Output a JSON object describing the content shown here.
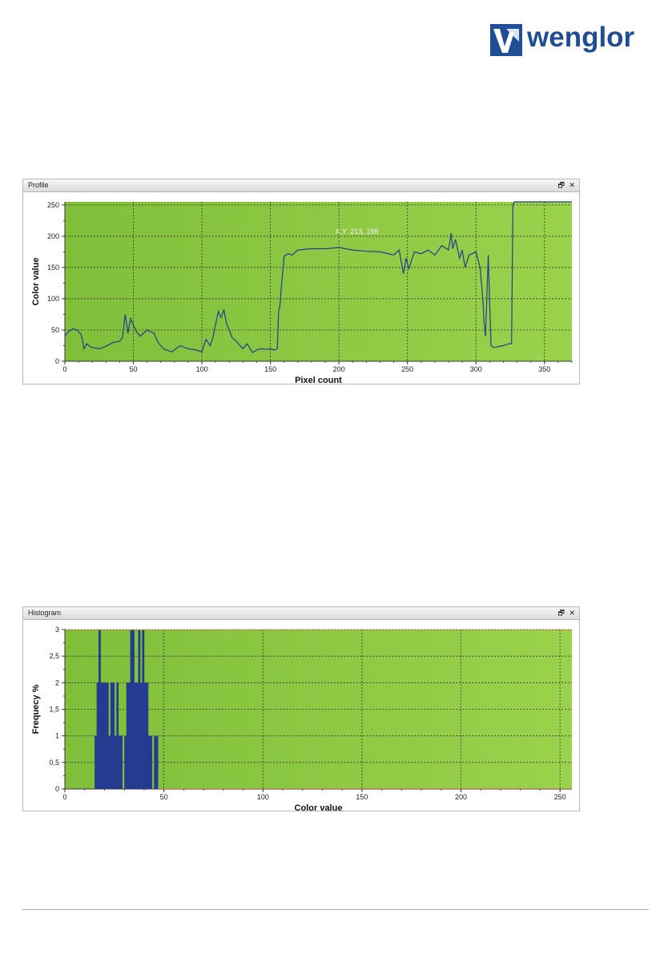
{
  "brand": {
    "name": "wenglor",
    "color": "#1f4e96"
  },
  "colors": {
    "plot_bg": "#8cc63f",
    "series": "#233c8f",
    "grid": "#333333"
  },
  "profile_panel": {
    "title": "Profile",
    "restore_icon": "🗗",
    "close_icon": "✕",
    "cursor_readout": "X,Y: 213, 198"
  },
  "histogram_panel": {
    "title": "Histogram",
    "restore_icon": "🗗",
    "close_icon": "✕"
  },
  "chart_data": [
    {
      "type": "line",
      "xlabel": "Pixel count",
      "ylabel": "Color value",
      "xlim": [
        0,
        370
      ],
      "ylim": [
        0,
        255
      ],
      "xticks": [
        0,
        50,
        100,
        150,
        200,
        250,
        300,
        350
      ],
      "yticks": [
        0,
        50,
        100,
        150,
        200,
        250
      ],
      "grid": true,
      "series": [
        {
          "x": [
            0,
            3,
            6,
            9,
            12,
            14,
            16,
            18,
            20,
            25,
            30,
            35,
            40,
            42,
            44,
            46,
            48,
            50,
            52,
            55,
            60,
            65,
            68,
            72,
            78,
            84,
            90,
            96,
            100,
            103,
            106,
            108,
            112,
            114,
            116,
            118,
            120,
            122,
            125,
            130,
            133,
            137,
            140,
            143,
            147,
            150,
            153,
            155,
            156,
            157,
            158,
            160,
            163,
            166,
            170,
            180,
            190,
            200,
            210,
            220,
            230,
            240,
            244,
            247,
            249,
            251,
            255,
            260,
            265,
            270,
            275,
            280,
            282,
            283,
            285,
            288,
            290,
            292,
            295,
            300,
            303,
            305,
            306,
            307,
            309,
            310,
            311,
            313,
            320,
            324,
            326,
            327,
            328,
            340,
            360,
            370
          ],
          "y": [
            40,
            48,
            52,
            50,
            42,
            20,
            28,
            24,
            22,
            20,
            24,
            30,
            32,
            38,
            75,
            45,
            68,
            58,
            48,
            40,
            50,
            45,
            30,
            20,
            15,
            25,
            20,
            18,
            15,
            35,
            25,
            38,
            80,
            70,
            82,
            60,
            50,
            38,
            32,
            20,
            28,
            14,
            18,
            20,
            19,
            20,
            18,
            20,
            80,
            90,
            120,
            168,
            172,
            170,
            178,
            180,
            180,
            182,
            178,
            176,
            175,
            170,
            178,
            140,
            165,
            148,
            175,
            172,
            178,
            170,
            185,
            178,
            205,
            180,
            195,
            165,
            178,
            150,
            170,
            175,
            150,
            100,
            60,
            40,
            170,
            90,
            25,
            22,
            25,
            28,
            28,
            250,
            255,
            255,
            255,
            255
          ]
        }
      ]
    },
    {
      "type": "bar",
      "xlabel": "Color value",
      "ylabel": "Frequecy  %",
      "xlim": [
        0,
        256
      ],
      "ylim": [
        0,
        3
      ],
      "xticks": [
        0,
        50,
        100,
        150,
        200,
        250
      ],
      "yticks": [
        0,
        0.5,
        1,
        1.5,
        2,
        2.5,
        3
      ],
      "ytick_labels": [
        "0",
        "0,5",
        "1",
        "1,5",
        "2",
        "2,5",
        "3"
      ],
      "grid": true,
      "x": [
        15,
        16,
        17,
        18,
        19,
        20,
        21,
        22,
        23,
        24,
        25,
        26,
        27,
        28,
        30,
        31,
        32,
        33,
        34,
        35,
        36,
        37,
        38,
        39,
        40,
        41,
        42,
        43,
        45,
        46
      ],
      "values": [
        1,
        2,
        3,
        2,
        2,
        2,
        2,
        1,
        2,
        2,
        1,
        2,
        1,
        1,
        1,
        2,
        2,
        3,
        3,
        2,
        2,
        3,
        2,
        3,
        2,
        2,
        1,
        1,
        1,
        1
      ]
    }
  ]
}
